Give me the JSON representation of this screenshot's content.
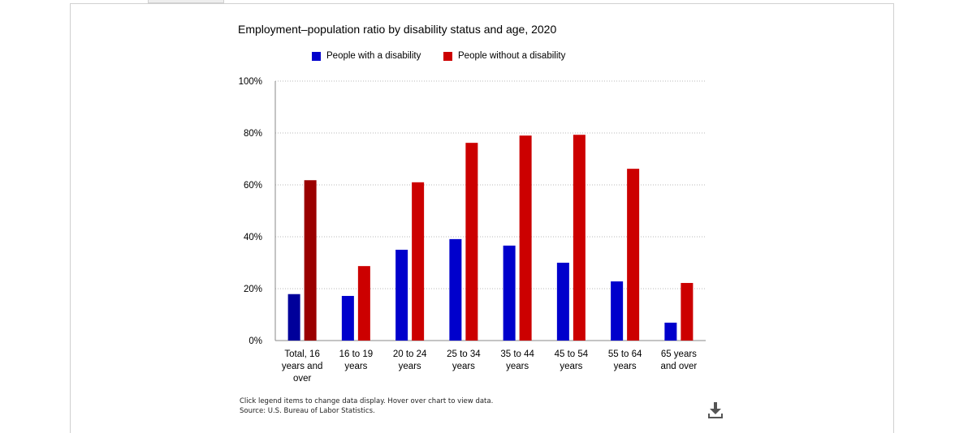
{
  "note_interaction": "Click legend items to change data display. Hover over chart to view data.",
  "note_source": "Source: U.S. Bureau of Labor Statistics.",
  "download_icon": "download-icon",
  "colors": {
    "with_disability": "#0000cc",
    "without_disability": "#cc0000",
    "with_disability_highlight": "#00009a",
    "without_disability_highlight": "#9a0000"
  },
  "chart_data": {
    "type": "bar",
    "title": "Employment–population ratio by disability status and age, 2020",
    "xlabel": "",
    "ylabel": "",
    "ylim": [
      0,
      100
    ],
    "yticks": [
      "0%",
      "20%",
      "40%",
      "60%",
      "80%",
      "100%"
    ],
    "grid": true,
    "legend_position": "top",
    "categories": [
      "Total, 16 years and over",
      "16 to 19 years",
      "20 to 24 years",
      "25 to 34 years",
      "35 to 44 years",
      "45 to 54 years",
      "55 to 64 years",
      "65 years and over"
    ],
    "category_lines": [
      [
        "Total, 16",
        "years and",
        "over"
      ],
      [
        "16 to 19",
        "years"
      ],
      [
        "20 to 24",
        "years"
      ],
      [
        "25 to 34",
        "years"
      ],
      [
        "35 to 44",
        "years"
      ],
      [
        "45 to 54",
        "years"
      ],
      [
        "55 to 64",
        "years"
      ],
      [
        "65 years",
        "and over"
      ]
    ],
    "series": [
      {
        "name": "People with a disability",
        "values": [
          17.9,
          17.2,
          35.0,
          39.1,
          36.6,
          30.0,
          22.8,
          6.9
        ]
      },
      {
        "name": "People without a disability",
        "values": [
          61.8,
          28.7,
          61.0,
          76.2,
          79.0,
          79.3,
          66.2,
          22.2
        ]
      }
    ]
  }
}
